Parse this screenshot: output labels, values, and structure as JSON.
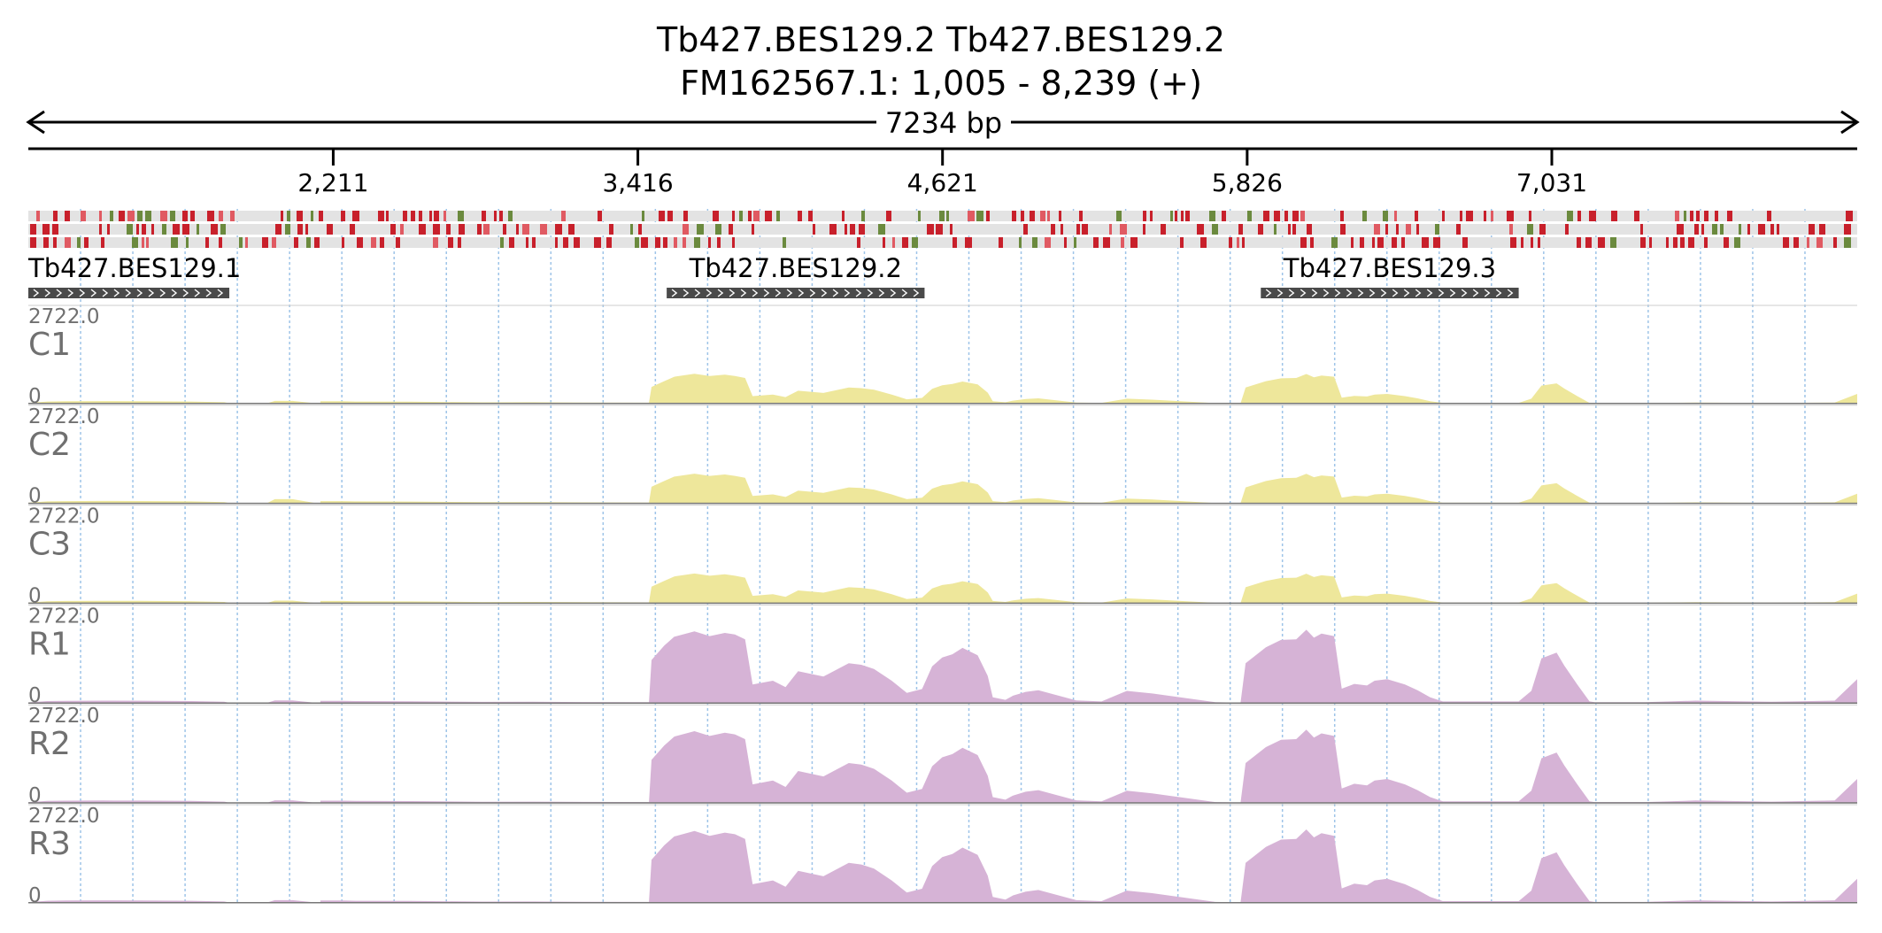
{
  "header": {
    "title_line1": "Tb427.BES129.2  Tb427.BES129.2",
    "title_line2": "FM162567.1: 1,005 - 8,239 (+)",
    "span_label": "7234 bp"
  },
  "chart_data": {
    "type": "area",
    "region": {
      "chrom": "FM162567.1",
      "start": 1005,
      "end": 8239,
      "strand": "+"
    },
    "xlim": [
      1005,
      8239
    ],
    "x_ticks": [
      2211,
      3416,
      4621,
      5826,
      7031
    ],
    "x_tick_labels": [
      "2,211",
      "3,416",
      "4,621",
      "5,826",
      "7,031"
    ],
    "track_ylim": [
      0,
      2722
    ],
    "track_max_label": "2722.0",
    "track_min_label": "0",
    "sequence_track": {
      "rows": 3,
      "colors": [
        "#c8202b",
        "#6b8a3e",
        "#f2f2f2"
      ]
    },
    "genes": [
      {
        "name": "Tb427.BES129.1",
        "start": 1005,
        "end": 1800,
        "strand": "+"
      },
      {
        "name": "Tb427.BES129.2",
        "start": 3530,
        "end": 4550,
        "strand": "+"
      },
      {
        "name": "Tb427.BES129.3",
        "start": 5880,
        "end": 6900,
        "strand": "+"
      }
    ],
    "profile_x": [
      1005,
      1080,
      1150,
      1300,
      1450,
      1650,
      1780,
      1800,
      1950,
      1980,
      2050,
      2140,
      2160,
      2160,
      2250,
      2300,
      2520,
      2800,
      3000,
      3200,
      3460,
      3470,
      3520,
      3560,
      3640,
      3700,
      3760,
      3800,
      3840,
      3870,
      3950,
      4000,
      4050,
      4150,
      4250,
      4300,
      4350,
      4420,
      4480,
      4540,
      4580,
      4620,
      4660,
      4700,
      4760,
      4800,
      4820,
      4870,
      4900,
      4950,
      5000,
      5150,
      5250,
      5350,
      5450,
      5700,
      5800,
      5820,
      5900,
      5960,
      6020,
      6060,
      6090,
      6120,
      6170,
      6200,
      6250,
      6300,
      6330,
      6380,
      6450,
      6500,
      6550,
      6600,
      6750,
      6900,
      6950,
      6990,
      7050,
      7080,
      7130,
      7180,
      7200,
      7400,
      7600,
      7900,
      8150,
      8239
    ],
    "series": [
      {
        "name": "C1",
        "color": "#eee79b",
        "values": [
          20,
          60,
          70,
          75,
          72,
          62,
          40,
          8,
          8,
          80,
          80,
          8,
          8,
          70,
          70,
          60,
          55,
          35,
          38,
          30,
          25,
          520,
          700,
          840,
          930,
          860,
          905,
          860,
          800,
          230,
          280,
          200,
          400,
          330,
          500,
          480,
          430,
          280,
          130,
          175,
          460,
          570,
          610,
          690,
          600,
          340,
          70,
          40,
          90,
          140,
          160,
          30,
          20,
          150,
          120,
          10,
          5,
          500,
          700,
          790,
          800,
          925,
          820,
          875,
          840,
          180,
          240,
          220,
          280,
          300,
          230,
          160,
          70,
          20,
          20,
          20,
          150,
          560,
          630,
          470,
          240,
          20,
          10,
          10,
          30,
          15,
          30,
          300
        ]
      },
      {
        "name": "C2",
        "color": "#eee79b",
        "values": [
          20,
          60,
          70,
          75,
          72,
          62,
          40,
          8,
          8,
          130,
          130,
          8,
          8,
          70,
          70,
          60,
          55,
          35,
          38,
          30,
          25,
          520,
          700,
          840,
          930,
          860,
          905,
          860,
          800,
          230,
          280,
          200,
          400,
          330,
          500,
          480,
          430,
          280,
          130,
          175,
          460,
          570,
          610,
          690,
          600,
          340,
          70,
          40,
          90,
          140,
          160,
          30,
          20,
          150,
          120,
          10,
          5,
          500,
          700,
          790,
          800,
          925,
          820,
          875,
          840,
          180,
          240,
          220,
          280,
          300,
          230,
          160,
          70,
          20,
          20,
          20,
          150,
          560,
          630,
          470,
          240,
          20,
          10,
          10,
          30,
          15,
          30,
          300
        ]
      },
      {
        "name": "C3",
        "color": "#eee79b",
        "values": [
          20,
          60,
          70,
          75,
          72,
          62,
          40,
          8,
          8,
          80,
          80,
          8,
          8,
          70,
          70,
          60,
          55,
          35,
          38,
          30,
          25,
          520,
          700,
          840,
          930,
          860,
          905,
          860,
          800,
          230,
          280,
          200,
          400,
          330,
          500,
          480,
          430,
          280,
          130,
          175,
          460,
          570,
          610,
          690,
          600,
          340,
          70,
          40,
          90,
          140,
          160,
          30,
          20,
          150,
          120,
          10,
          5,
          500,
          700,
          790,
          800,
          925,
          820,
          875,
          840,
          180,
          240,
          220,
          280,
          300,
          230,
          160,
          70,
          20,
          20,
          20,
          150,
          560,
          630,
          470,
          240,
          20,
          10,
          10,
          30,
          15,
          30,
          300
        ]
      },
      {
        "name": "R1",
        "color": "#d6b3d6",
        "values": [
          20,
          60,
          70,
          75,
          72,
          62,
          40,
          8,
          8,
          80,
          80,
          8,
          8,
          70,
          70,
          60,
          55,
          35,
          38,
          30,
          25,
          1350,
          1800,
          2080,
          2250,
          2100,
          2200,
          2150,
          2000,
          580,
          700,
          500,
          1000,
          830,
          1250,
          1200,
          1070,
          700,
          320,
          440,
          1150,
          1430,
          1530,
          1730,
          1500,
          850,
          180,
          100,
          230,
          350,
          400,
          80,
          50,
          380,
          300,
          25,
          12,
          1250,
          1750,
          1980,
          2000,
          2300,
          2050,
          2180,
          2100,
          450,
          600,
          550,
          700,
          750,
          580,
          400,
          180,
          50,
          50,
          50,
          380,
          1400,
          1580,
          1180,
          600,
          50,
          25,
          25,
          75,
          38,
          75,
          750
        ]
      },
      {
        "name": "R2",
        "color": "#d6b3d6",
        "values": [
          20,
          60,
          70,
          75,
          72,
          62,
          40,
          8,
          8,
          80,
          80,
          8,
          8,
          70,
          70,
          60,
          55,
          35,
          38,
          30,
          25,
          1350,
          1800,
          2080,
          2250,
          2100,
          2200,
          2150,
          2000,
          580,
          700,
          500,
          1000,
          830,
          1250,
          1200,
          1070,
          700,
          320,
          440,
          1150,
          1430,
          1530,
          1730,
          1500,
          850,
          180,
          100,
          230,
          350,
          400,
          80,
          50,
          380,
          300,
          25,
          12,
          1250,
          1750,
          1980,
          2000,
          2300,
          2050,
          2180,
          2100,
          450,
          600,
          550,
          700,
          750,
          580,
          400,
          180,
          50,
          50,
          50,
          380,
          1400,
          1580,
          1180,
          600,
          50,
          25,
          25,
          75,
          38,
          75,
          750
        ]
      },
      {
        "name": "R3",
        "color": "#d6b3d6",
        "values": [
          20,
          60,
          70,
          75,
          72,
          62,
          40,
          8,
          8,
          80,
          80,
          8,
          8,
          70,
          70,
          60,
          55,
          35,
          38,
          30,
          25,
          1350,
          1800,
          2080,
          2250,
          2100,
          2200,
          2150,
          2000,
          580,
          700,
          500,
          1000,
          830,
          1250,
          1200,
          1070,
          700,
          320,
          440,
          1150,
          1430,
          1530,
          1730,
          1500,
          850,
          180,
          100,
          230,
          350,
          400,
          80,
          50,
          380,
          300,
          25,
          12,
          1250,
          1750,
          1980,
          2000,
          2300,
          2050,
          2180,
          2100,
          450,
          600,
          550,
          700,
          750,
          580,
          400,
          180,
          50,
          50,
          50,
          380,
          1400,
          1580,
          1180,
          600,
          50,
          25,
          25,
          75,
          38,
          75,
          750
        ]
      }
    ],
    "grid": true
  }
}
